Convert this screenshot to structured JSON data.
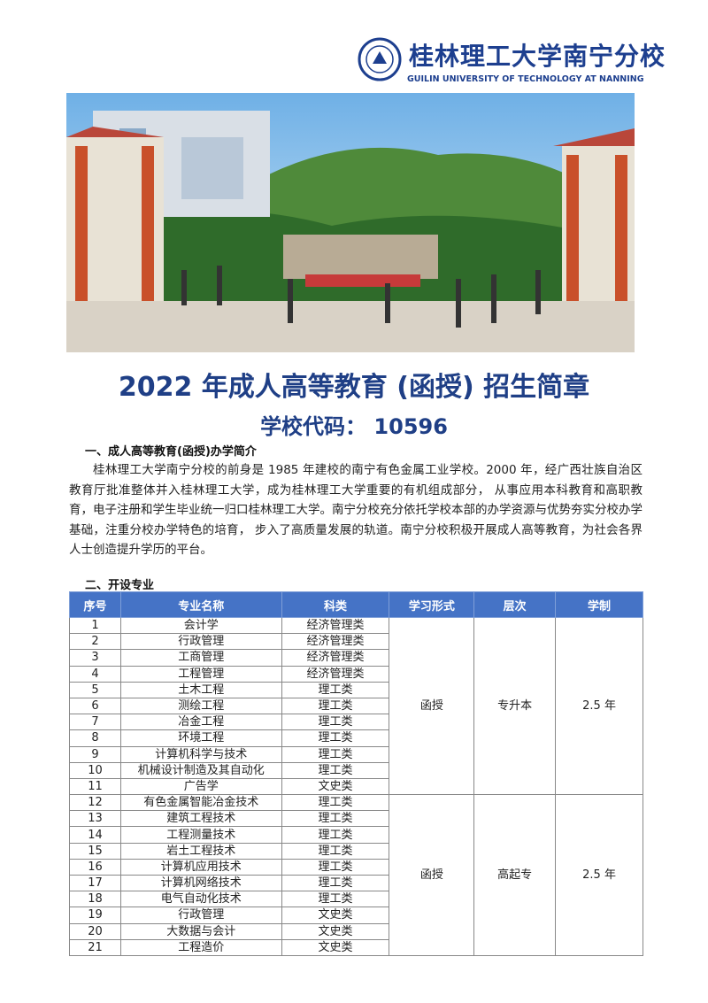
{
  "header": {
    "school_name": "桂林理工大学南宁分校",
    "school_name_en": "GUILIN UNIVERSITY OF TECHNOLOGY AT NANNING"
  },
  "title": "2022 年成人高等教育 (函授) 招生简章",
  "school_code": "学校代码： 10596",
  "section1": {
    "heading": "一、成人高等教育(函授)办学简介",
    "body": "桂林理工大学南宁分校的前身是 1985 年建校的南宁有色金属工业学校。2000 年，经广西壮族自治区教育厅批准整体并入桂林理工大学，成为桂林理工大学重要的有机组成部分， 从事应用本科教育和高职教育，电子注册和学生毕业统一归口桂林理工大学。南宁分校充分依托学校本部的办学资源与优势夯实分校办学基础，注重分校办学特色的培育， 步入了高质量发展的轨道。南宁分校积极开展成人高等教育，为社会各界人士创造提升学历的平台。"
  },
  "section2": {
    "heading": "二、开设专业"
  },
  "table": {
    "header": [
      "序号",
      "专业名称",
      "科类",
      "学习形式",
      "层次",
      "学制"
    ],
    "groups": [
      {
        "form": "函授",
        "level": "专升本",
        "years": "2.5 年",
        "rows": [
          [
            "1",
            "会计学",
            "经济管理类"
          ],
          [
            "2",
            "行政管理",
            "经济管理类"
          ],
          [
            "3",
            "工商管理",
            "经济管理类"
          ],
          [
            "4",
            "工程管理",
            "经济管理类"
          ],
          [
            "5",
            "土木工程",
            "理工类"
          ],
          [
            "6",
            "测绘工程",
            "理工类"
          ],
          [
            "7",
            "冶金工程",
            "理工类"
          ],
          [
            "8",
            "环境工程",
            "理工类"
          ],
          [
            "9",
            "计算机科学与技术",
            "理工类"
          ],
          [
            "10",
            "机械设计制造及其自动化",
            "理工类"
          ],
          [
            "11",
            "广告学",
            "文史类"
          ]
        ]
      },
      {
        "form": "函授",
        "level": "高起专",
        "years": "2.5 年",
        "rows": [
          [
            "12",
            "有色金属智能冶金技术",
            "理工类"
          ],
          [
            "13",
            "建筑工程技术",
            "理工类"
          ],
          [
            "14",
            "工程测量技术",
            "理工类"
          ],
          [
            "15",
            "岩土工程技术",
            "理工类"
          ],
          [
            "16",
            "计算机应用技术",
            "理工类"
          ],
          [
            "17",
            "计算机网络技术",
            "理工类"
          ],
          [
            "18",
            "电气自动化技术",
            "理工类"
          ],
          [
            "19",
            "行政管理",
            "文史类"
          ],
          [
            "20",
            "大数据与会计",
            "文史类"
          ],
          [
            "21",
            "工程造价",
            "文史类"
          ]
        ]
      }
    ]
  }
}
